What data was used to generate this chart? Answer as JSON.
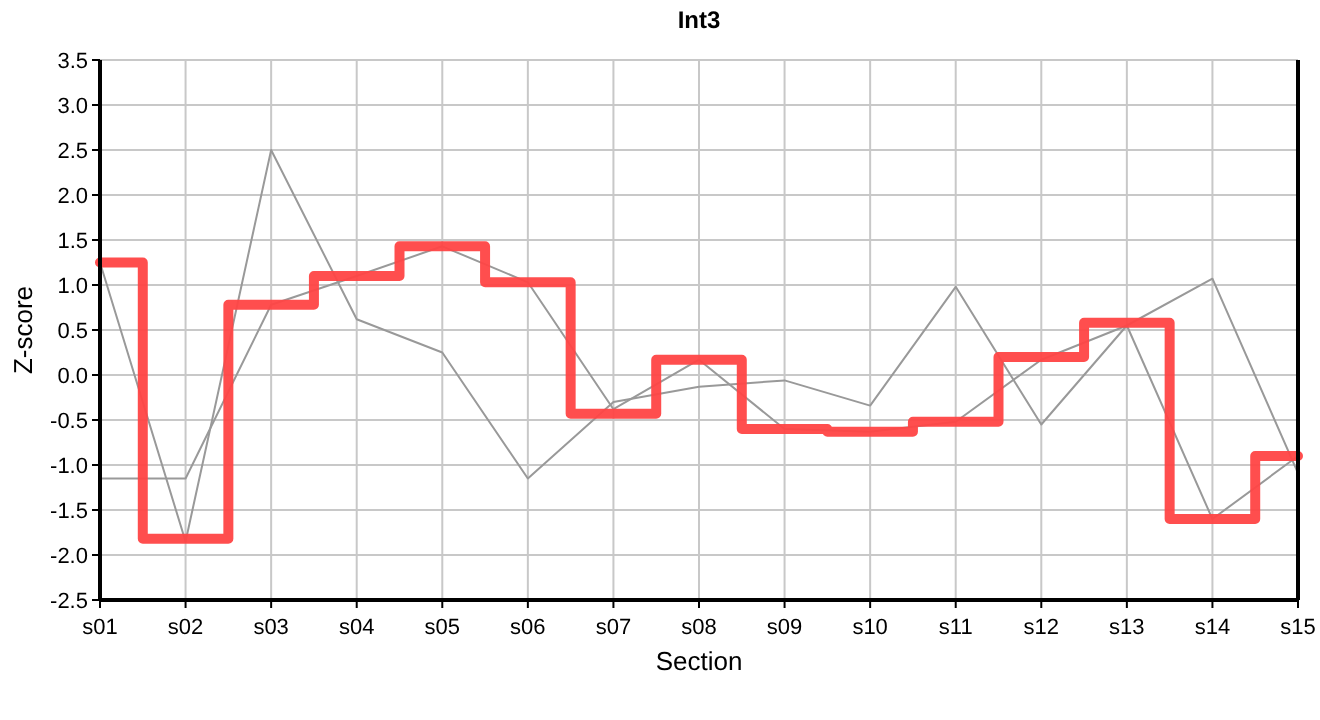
{
  "chart_data": {
    "type": "line",
    "title": "Int3",
    "xlabel": "Section",
    "ylabel": "Z-score",
    "categories": [
      "s01",
      "s02",
      "s03",
      "s04",
      "s05",
      "s06",
      "s07",
      "s08",
      "s09",
      "s10",
      "s11",
      "s12",
      "s13",
      "s14",
      "s15"
    ],
    "series": [
      {
        "color": "#999999",
        "values": [
          1.25,
          -1.85,
          2.5,
          0.62,
          0.25,
          -1.15,
          -0.3,
          -0.13,
          -0.06,
          -0.34,
          0.98,
          -0.55,
          0.55,
          1.07,
          -1.09
        ]
      },
      {
        "color": "#999999",
        "values": [
          -1.15,
          -1.15,
          0.78,
          1.1,
          1.43,
          1.03,
          -0.38,
          0.17,
          -0.6,
          -0.63,
          -0.52,
          0.17,
          0.55,
          -1.6,
          -0.9
        ]
      },
      {
        "type": "step",
        "color": "#ff4444",
        "values": [
          1.25,
          -1.82,
          0.78,
          1.1,
          1.43,
          1.03,
          -0.43,
          0.17,
          -0.6,
          -0.63,
          -0.52,
          0.2,
          0.58,
          -1.6,
          -0.9
        ]
      }
    ],
    "ylim": [
      -2.5,
      3.5
    ],
    "yticks": [
      {
        "value": -2.5,
        "label": "-2.5"
      },
      {
        "value": -2,
        "label": "-2.0"
      },
      {
        "value": -1.5,
        "label": "-1.5"
      },
      {
        "value": -1,
        "label": "-1.0"
      },
      {
        "value": -0.5,
        "label": "-0.5"
      },
      {
        "value": 0,
        "label": "0.0"
      },
      {
        "value": 0.5,
        "label": "0.5"
      },
      {
        "value": 1,
        "label": "1.0"
      },
      {
        "value": 1.5,
        "label": "1.5"
      },
      {
        "value": 2,
        "label": "2.0"
      },
      {
        "value": 2.5,
        "label": "2.5"
      },
      {
        "value": 3,
        "label": "3.0"
      },
      {
        "value": 3.5,
        "label": "3.5"
      }
    ],
    "grid": true,
    "marker": "none"
  }
}
